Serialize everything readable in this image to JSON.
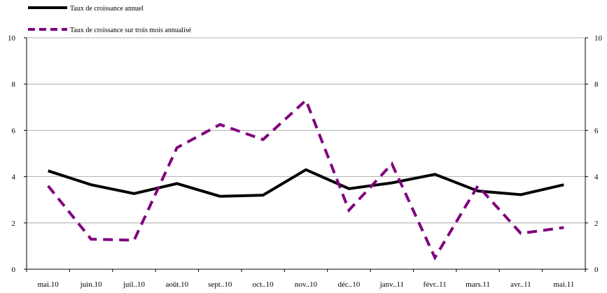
{
  "chart_data": {
    "type": "line",
    "title": "",
    "categories": [
      "mai.10",
      "juin.10",
      "juil..10",
      "août.10",
      "sept..10",
      "oct..10",
      "nov..10",
      "déc..10",
      "janv..11",
      "févr..11",
      "mars.11",
      "avr..11",
      "mai.11"
    ],
    "series": [
      {
        "name": "Taux de croissance annuel",
        "values": [
          4.25,
          3.65,
          3.27,
          3.7,
          3.15,
          3.2,
          4.3,
          3.48,
          3.73,
          4.1,
          3.38,
          3.22,
          3.65
        ],
        "color": "#000000",
        "style": "solid"
      },
      {
        "name": "Taux de croissance sur trois mois annualisé",
        "values": [
          3.6,
          1.3,
          1.25,
          5.25,
          6.25,
          5.6,
          7.3,
          2.55,
          4.55,
          0.5,
          3.6,
          1.55,
          1.8
        ],
        "color": "#800080",
        "style": "dashed"
      }
    ],
    "ylim": [
      0,
      10
    ],
    "yticks": [
      0,
      2,
      4,
      6,
      8,
      10
    ],
    "y_right_ticks": [
      0,
      2,
      4,
      6,
      8,
      10
    ],
    "grid": "horizontal",
    "legend": "top-left"
  }
}
